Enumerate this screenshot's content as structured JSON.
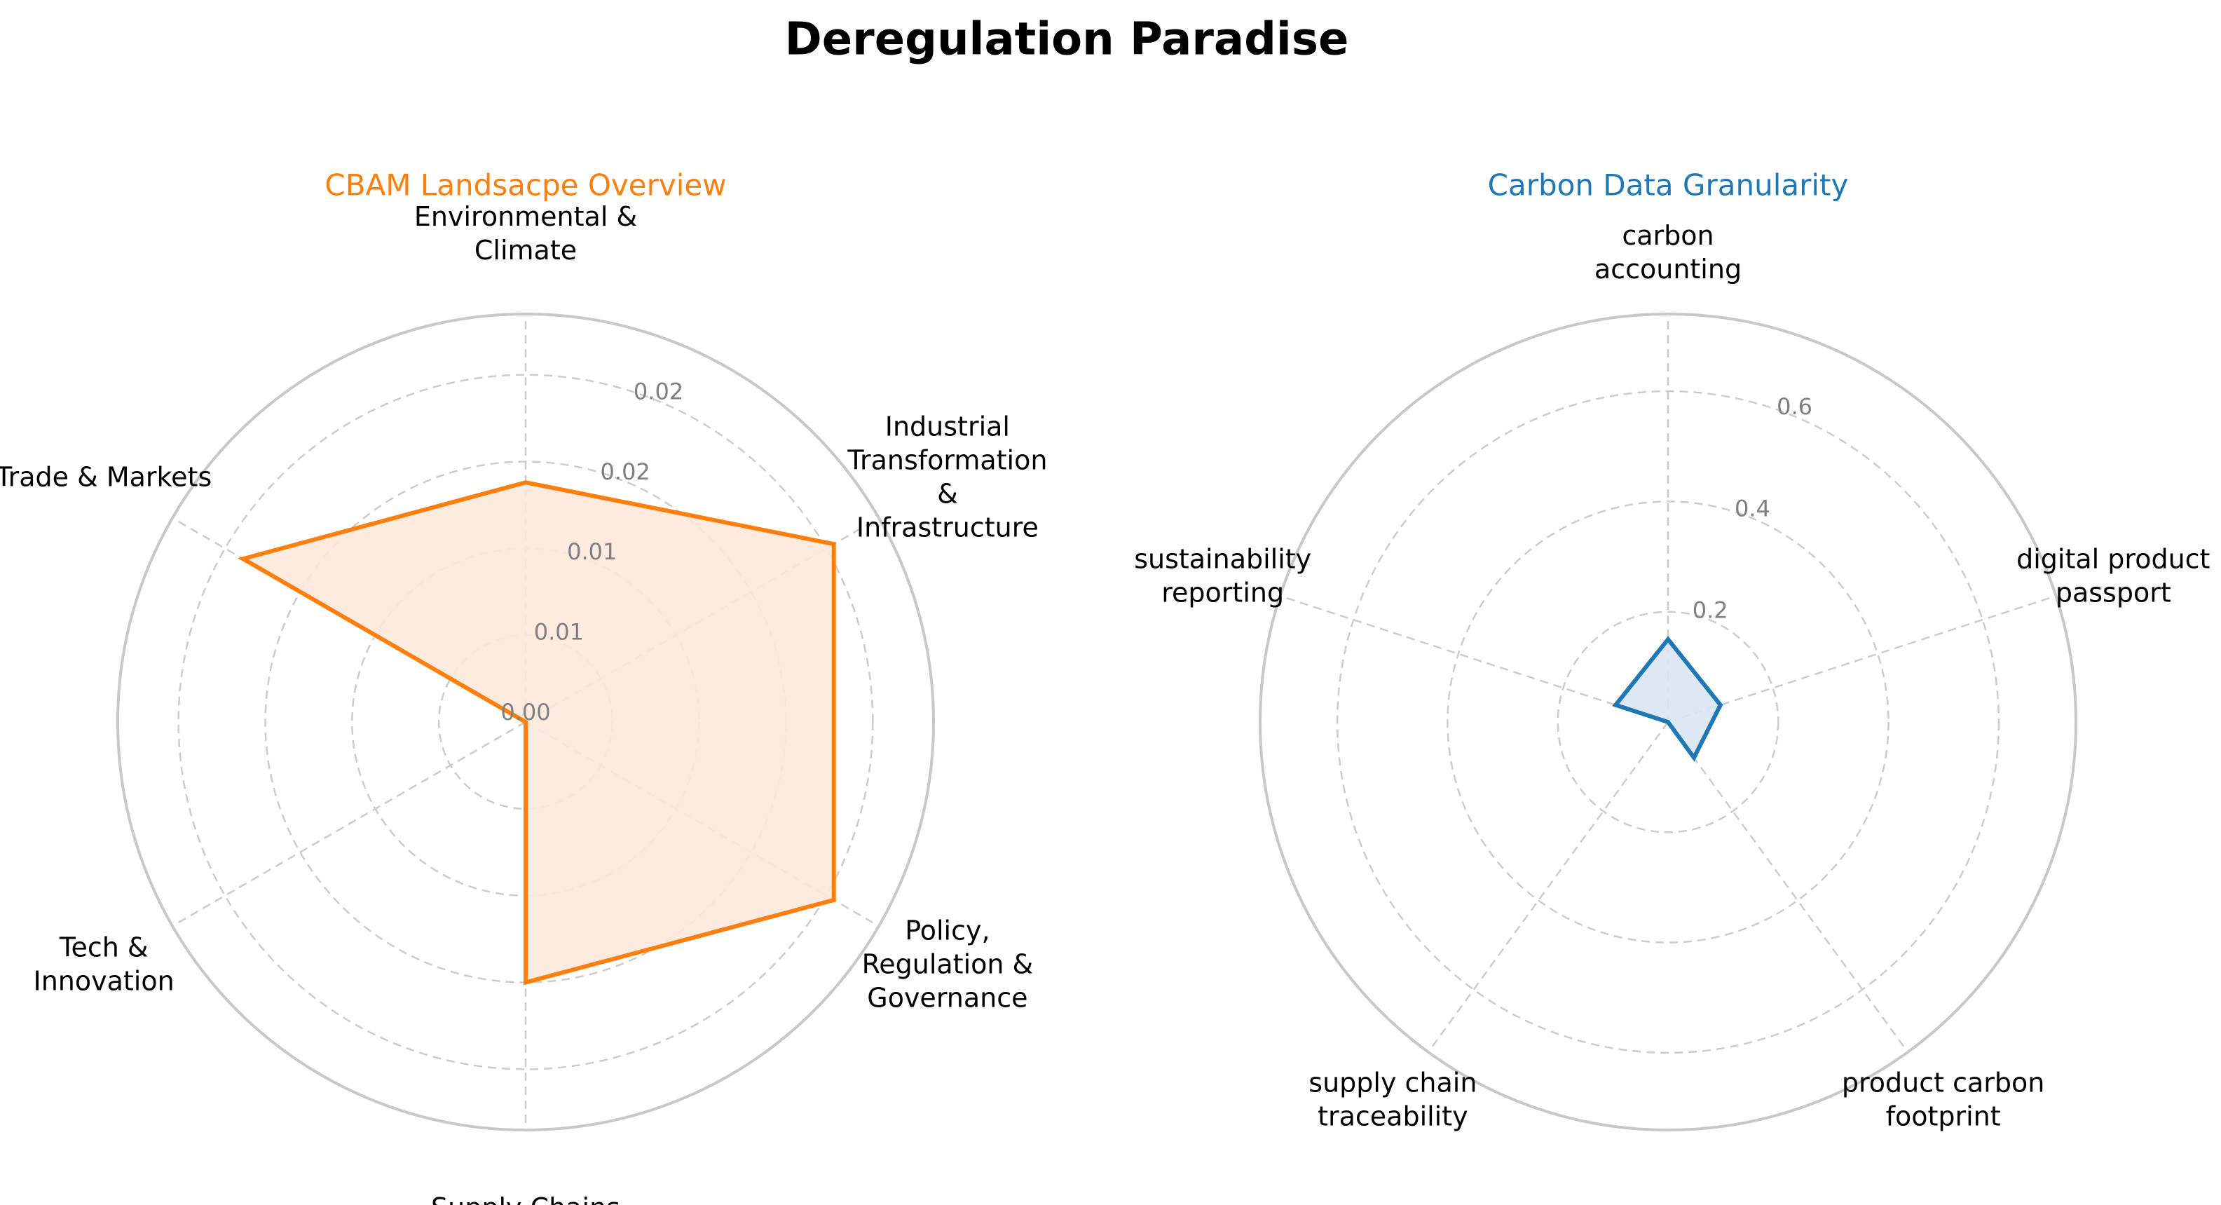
{
  "figure": {
    "title": "Deregulation Paradise"
  },
  "chart_data": [
    {
      "type": "radar",
      "title": "CBAM Landsacpe Overview",
      "color": "#ff7f0e",
      "fill_color": "#fde9db",
      "categories": [
        "Environmental & Climate",
        "Industrial Transformation & Infrastructure",
        "Policy, Regulation & Governance",
        "Supply Chains",
        "Tech & Innovation",
        "Trade & Markets"
      ],
      "category_lines": [
        [
          "Environmental &",
          "Climate"
        ],
        [
          "Industrial",
          "Transformation",
          "&",
          "Infrastructure"
        ],
        [
          "Policy,",
          "Regulation &",
          "Governance"
        ],
        [
          "Supply Chains"
        ],
        [
          "Tech &",
          "Innovation"
        ],
        [
          "Trade & Markets"
        ]
      ],
      "values": [
        0.0138,
        0.0205,
        0.0205,
        0.015,
        0.0,
        0.0188
      ],
      "rlim": [
        0,
        0.0235
      ],
      "ticks": [
        0.0,
        0.005,
        0.01,
        0.015,
        0.02
      ],
      "tick_labels": [
        "0.00",
        "0.01",
        "0.01",
        "0.02",
        "0.02"
      ],
      "filled": true,
      "grid": true
    },
    {
      "type": "radar",
      "title": "Carbon Data Granularity",
      "color": "#1f77b4",
      "fill_color": "#d9e6f2",
      "categories": [
        "carbon accounting",
        "digital product passport",
        "product carbon footprint",
        "supply chain traceability",
        "sustainability reporting"
      ],
      "category_lines": [
        [
          "carbon",
          "accounting"
        ],
        [
          "digital product",
          "passport"
        ],
        [
          "product carbon",
          "footprint"
        ],
        [
          "supply chain",
          "traceability"
        ],
        [
          "sustainability",
          "reporting"
        ]
      ],
      "values": [
        0.15,
        0.1,
        0.08,
        0.0,
        0.1
      ],
      "rlim": [
        0,
        0.74
      ],
      "ticks": [
        0.2,
        0.4,
        0.6
      ],
      "tick_labels": [
        "0.2",
        "0.4",
        "0.6"
      ],
      "filled": true,
      "grid": true
    }
  ]
}
